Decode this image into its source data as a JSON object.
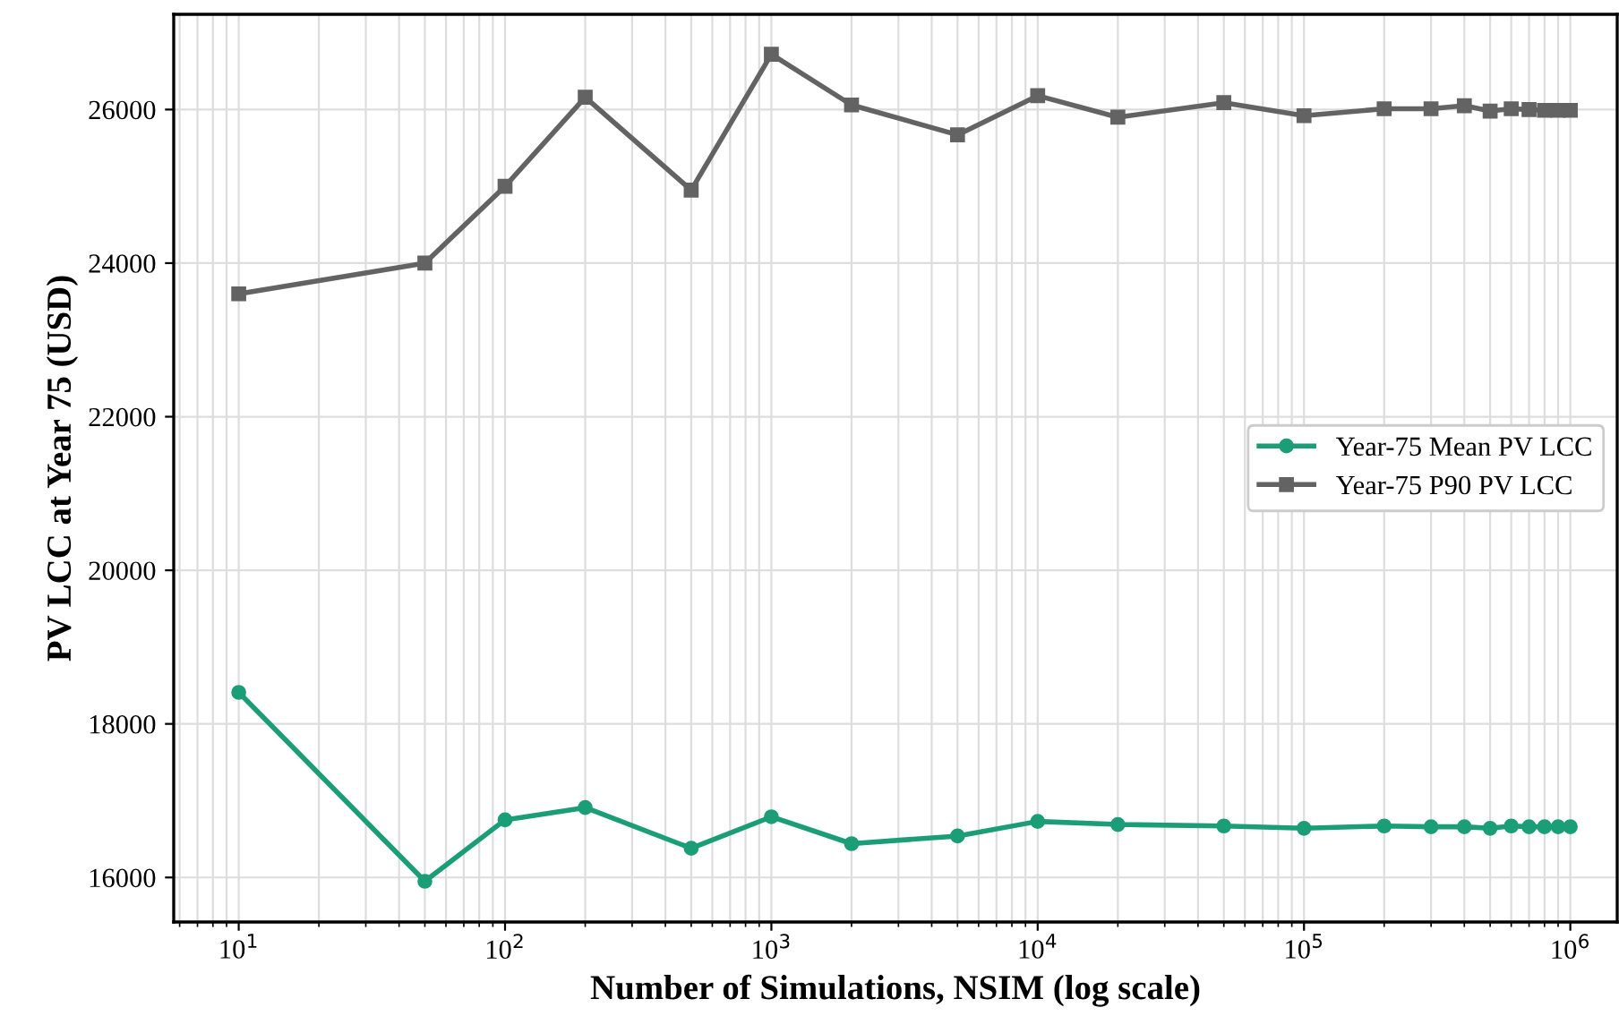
{
  "chart_data": {
    "type": "line",
    "xlabel": "Number of Simulations, NSIM (log scale)",
    "ylabel": "PV LCC at Year 75 (USD)",
    "x": [
      10,
      50,
      100,
      200,
      500,
      1000,
      2000,
      5000,
      10000,
      20000,
      50000,
      100000,
      200000,
      300000,
      400000,
      500000,
      600000,
      700000,
      800000,
      900000,
      1000000
    ],
    "series": [
      {
        "name": "Year-75 Mean PV LCC",
        "color": "#1b9e77",
        "marker": "circle",
        "values": [
          18410,
          15950,
          16750,
          16910,
          16380,
          16790,
          16440,
          16540,
          16730,
          16690,
          16670,
          16640,
          16670,
          16660,
          16660,
          16640,
          16670,
          16660,
          16660,
          16660,
          16660
        ]
      },
      {
        "name": "Year-75 P90 PV LCC",
        "color": "#636363",
        "marker": "square",
        "values": [
          23600,
          24000,
          25000,
          26160,
          24950,
          26720,
          26060,
          25670,
          26180,
          25900,
          26090,
          25920,
          26010,
          26010,
          26050,
          25980,
          26010,
          26000,
          25990,
          25990,
          25990
        ]
      }
    ],
    "log": "x",
    "xlim": [
      5.7,
      1500000
    ],
    "ylim": [
      15420,
      27240
    ],
    "xticks": [
      {
        "value": 10,
        "label": "10$^{1}$"
      },
      {
        "value": 100,
        "label": "10$^{2}$"
      },
      {
        "value": 1000,
        "label": "10$^{3}$"
      },
      {
        "value": 10000,
        "label": "10$^{4}$"
      },
      {
        "value": 100000,
        "label": "10$^{5}$"
      },
      {
        "value": 1000000,
        "label": "10$^{6}$"
      }
    ],
    "yticks": [
      16000,
      18000,
      20000,
      22000,
      24000,
      26000
    ],
    "grid": true,
    "legend": "right",
    "line_style": "solid"
  }
}
